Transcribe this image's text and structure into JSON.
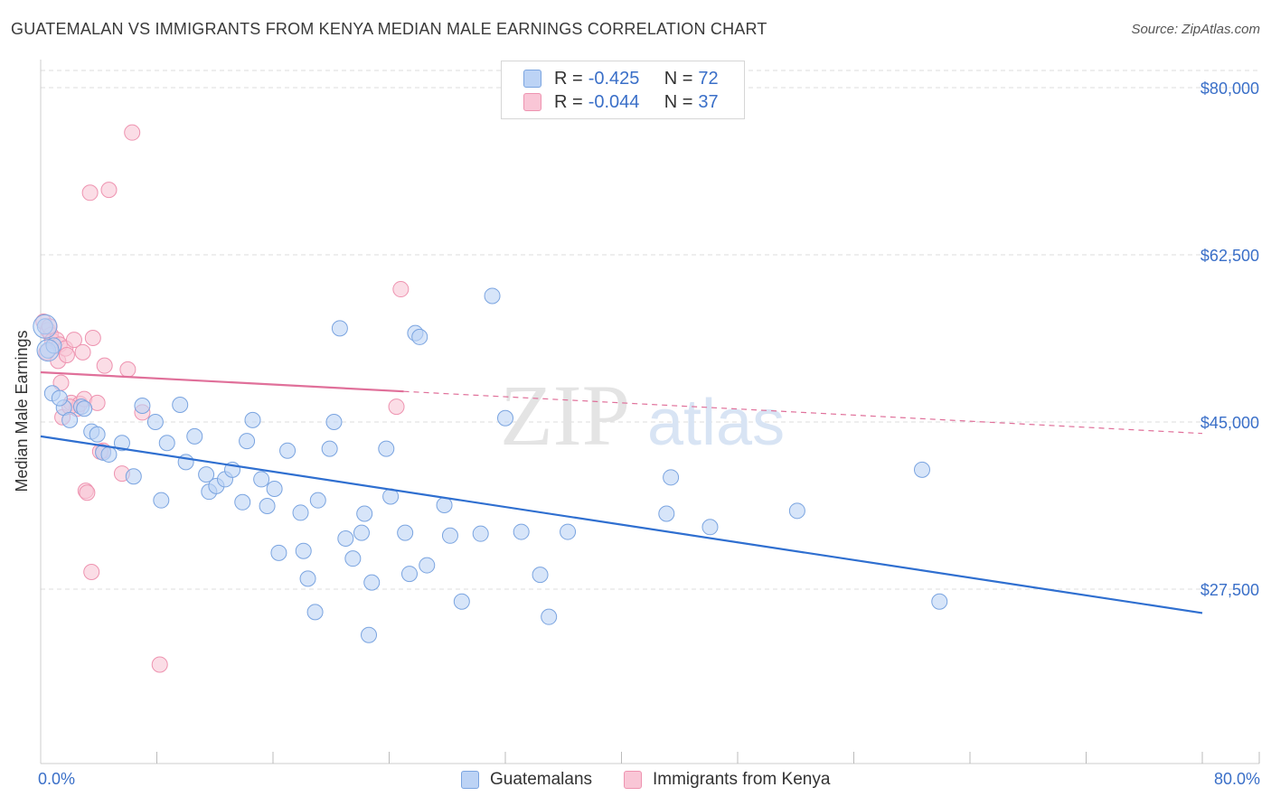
{
  "title": "GUATEMALAN VS IMMIGRANTS FROM KENYA MEDIAN MALE EARNINGS CORRELATION CHART",
  "source": "Source: ZipAtlas.com",
  "legend": {
    "rows": [
      {
        "r_label": "R =",
        "r_value": "-0.425",
        "n_label": "N =",
        "n_value": "72"
      },
      {
        "r_label": "R =",
        "r_value": "-0.044",
        "n_label": "N =",
        "n_value": "37"
      }
    ]
  },
  "bottom_legend": [
    "Guatemalans",
    "Immigrants from Kenya"
  ],
  "x_min_label": "0.0%",
  "x_max_label": "80.0%",
  "watermark": {
    "zip": "ZIP",
    "atlas": "atlas"
  },
  "colors": {
    "blue_fill": "#bcd3f5",
    "blue_stroke": "#7aa4e0",
    "blue_line": "#2f6fd0",
    "pink_fill": "#f9c6d6",
    "pink_stroke": "#ee93b0",
    "pink_line": "#e0709a",
    "tick_text": "#3a6fc8",
    "grid": "#dddddd"
  },
  "chart_data": {
    "type": "scatter",
    "title": "GUATEMALAN VS IMMIGRANTS FROM KENYA MEDIAN MALE EARNINGS CORRELATION CHART",
    "xlabel": "",
    "ylabel": "Median Male Earnings",
    "xlim": [
      0,
      80
    ],
    "ylim": [
      12000,
      82000
    ],
    "y_ticks": [
      27500,
      45000,
      62500,
      80000
    ],
    "y_tick_labels": [
      "$27,500",
      "$45,000",
      "$62,500",
      "$80,000"
    ],
    "grid": true,
    "legend_position": "top-center",
    "series": [
      {
        "name": "Guatemalans",
        "r": -0.425,
        "n": 72,
        "trend": {
          "x": [
            0,
            80
          ],
          "y": [
            43500,
            25000
          ],
          "dashed_from": null
        },
        "points": [
          [
            0.3,
            55000
          ],
          [
            0.5,
            52500
          ],
          [
            0.8,
            48000
          ],
          [
            1.6,
            46500
          ],
          [
            2.0,
            45200
          ],
          [
            2.8,
            46600
          ],
          [
            3.5,
            44000
          ],
          [
            3.9,
            43700
          ],
          [
            4.3,
            41800
          ],
          [
            4.7,
            41600
          ],
          [
            5.6,
            42800
          ],
          [
            6.4,
            39300
          ],
          [
            7.0,
            46700
          ],
          [
            7.9,
            45000
          ],
          [
            8.3,
            36800
          ],
          [
            8.7,
            42800
          ],
          [
            9.6,
            46800
          ],
          [
            10.0,
            40800
          ],
          [
            10.6,
            43500
          ],
          [
            11.4,
            39500
          ],
          [
            11.6,
            37700
          ],
          [
            12.1,
            38300
          ],
          [
            12.7,
            39000
          ],
          [
            13.2,
            40000
          ],
          [
            13.9,
            36600
          ],
          [
            14.2,
            43000
          ],
          [
            14.6,
            45200
          ],
          [
            15.2,
            39000
          ],
          [
            15.6,
            36200
          ],
          [
            16.1,
            38000
          ],
          [
            16.4,
            31300
          ],
          [
            17.0,
            42000
          ],
          [
            17.9,
            35500
          ],
          [
            18.1,
            31500
          ],
          [
            18.4,
            28600
          ],
          [
            18.9,
            25100
          ],
          [
            19.1,
            36800
          ],
          [
            19.9,
            42200
          ],
          [
            20.2,
            45000
          ],
          [
            20.6,
            54800
          ],
          [
            21.0,
            32800
          ],
          [
            21.5,
            30700
          ],
          [
            22.1,
            33400
          ],
          [
            22.3,
            35400
          ],
          [
            22.6,
            22700
          ],
          [
            22.8,
            28200
          ],
          [
            23.8,
            42200
          ],
          [
            24.1,
            37200
          ],
          [
            25.1,
            33400
          ],
          [
            25.4,
            29100
          ],
          [
            25.8,
            54300
          ],
          [
            26.1,
            53900
          ],
          [
            26.6,
            30000
          ],
          [
            27.8,
            36300
          ],
          [
            28.2,
            33100
          ],
          [
            29.0,
            26200
          ],
          [
            30.3,
            33300
          ],
          [
            31.1,
            58200
          ],
          [
            32.0,
            45400
          ],
          [
            33.1,
            33500
          ],
          [
            34.4,
            29000
          ],
          [
            35.0,
            24600
          ],
          [
            36.3,
            33500
          ],
          [
            43.1,
            35400
          ],
          [
            43.4,
            39200
          ],
          [
            46.1,
            34000
          ],
          [
            52.1,
            35700
          ],
          [
            60.7,
            40000
          ],
          [
            61.9,
            26200
          ],
          [
            0.9,
            53000
          ],
          [
            1.3,
            47500
          ],
          [
            3.0,
            46400
          ]
        ]
      },
      {
        "name": "Immigrants from Kenya",
        "r": -0.044,
        "n": 37,
        "trend": {
          "x": [
            0,
            80
          ],
          "y": [
            50200,
            43800
          ],
          "dashed_from": 25.0
        },
        "points": [
          [
            0.2,
            55500
          ],
          [
            0.5,
            54600
          ],
          [
            0.7,
            54100
          ],
          [
            0.8,
            53500
          ],
          [
            1.1,
            53600
          ],
          [
            1.2,
            51400
          ],
          [
            1.3,
            53100
          ],
          [
            1.4,
            49100
          ],
          [
            1.5,
            45500
          ],
          [
            1.7,
            52700
          ],
          [
            1.8,
            52000
          ],
          [
            2.1,
            47000
          ],
          [
            2.3,
            53600
          ],
          [
            2.5,
            46400
          ],
          [
            2.7,
            46900
          ],
          [
            2.9,
            52300
          ],
          [
            3.0,
            47400
          ],
          [
            3.1,
            37800
          ],
          [
            3.2,
            37600
          ],
          [
            3.5,
            29300
          ],
          [
            3.6,
            53800
          ],
          [
            3.9,
            47000
          ],
          [
            4.3,
            42000
          ],
          [
            4.4,
            50900
          ],
          [
            4.7,
            69300
          ],
          [
            5.6,
            39600
          ],
          [
            6.0,
            50500
          ],
          [
            6.3,
            75300
          ],
          [
            7.0,
            46000
          ],
          [
            8.2,
            19600
          ],
          [
            24.5,
            46600
          ],
          [
            24.8,
            58900
          ],
          [
            0.4,
            52300
          ],
          [
            0.6,
            55000
          ],
          [
            2.0,
            46600
          ],
          [
            3.4,
            69000
          ],
          [
            4.1,
            41900
          ]
        ]
      }
    ]
  }
}
